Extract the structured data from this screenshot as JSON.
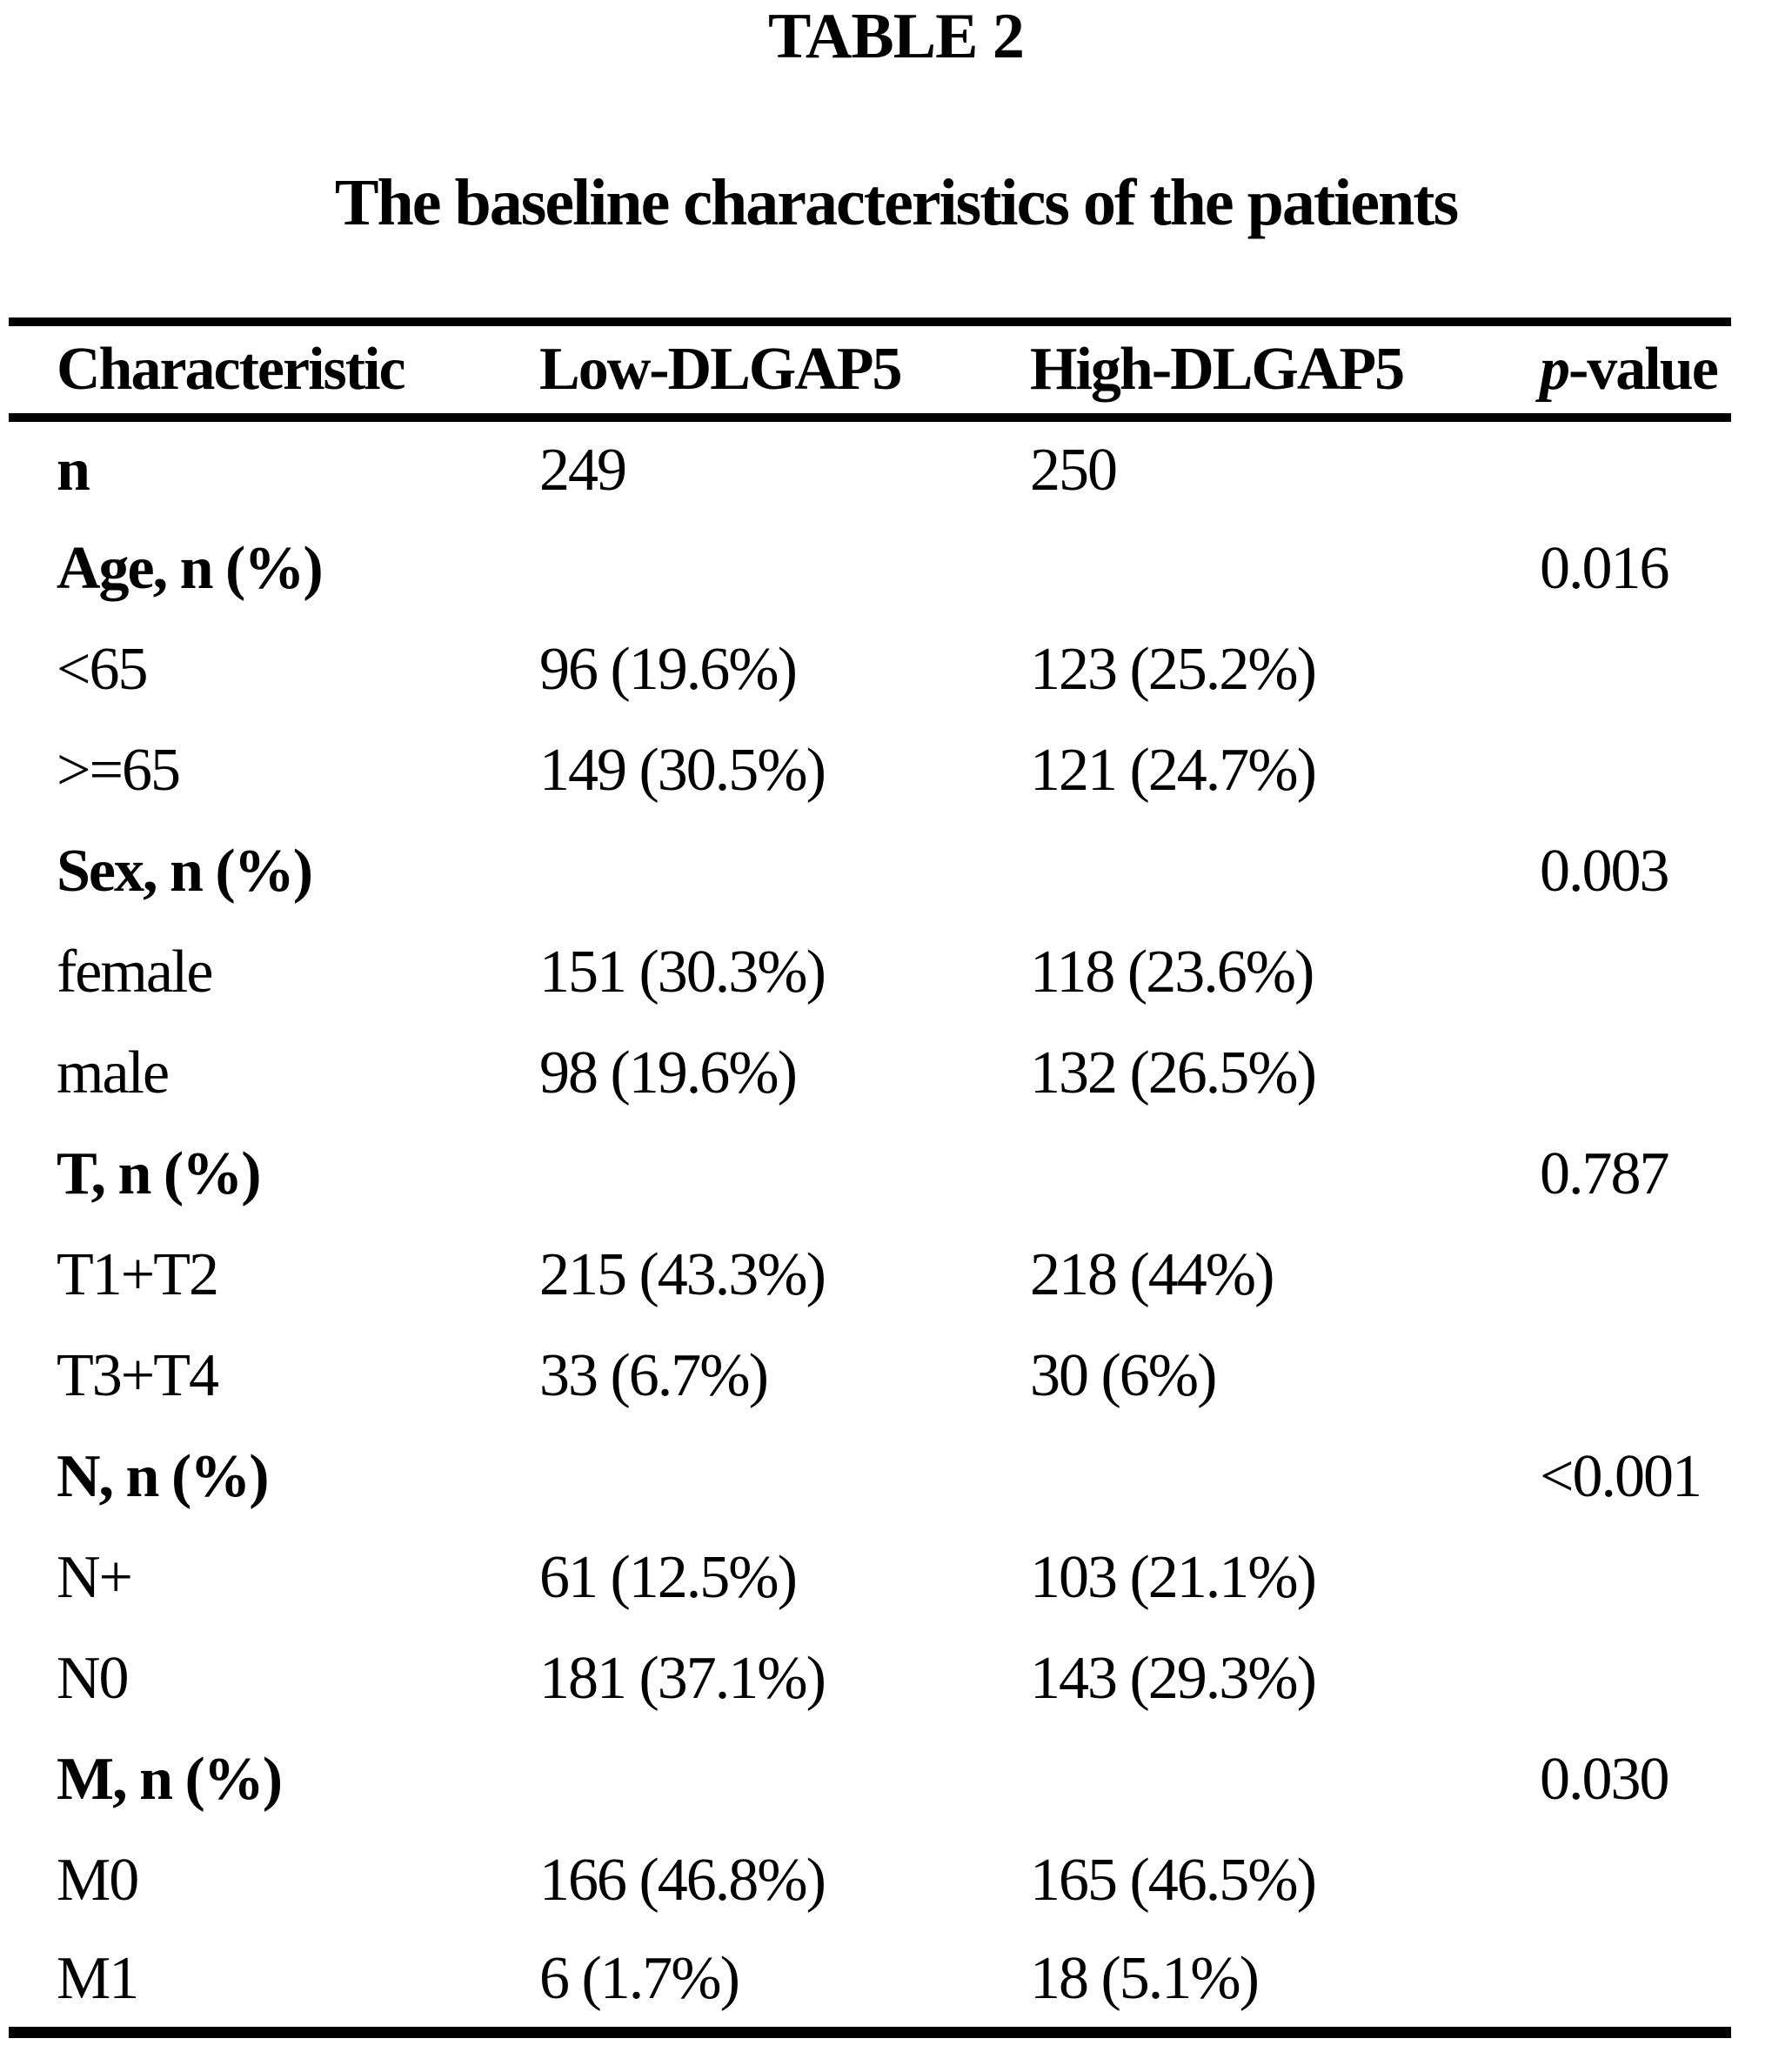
{
  "page": {
    "title": "TABLE 2",
    "subtitle": "The baseline characteristics of the patients"
  },
  "colors": {
    "background": "#ffffff",
    "text": "#000000",
    "rule": "#000000"
  },
  "table": {
    "columns": [
      "Characteristic",
      "Low-DLGAP5",
      "High-DLGAP5",
      "p-value"
    ],
    "p_header": {
      "italic": "p",
      "rest": "-value"
    },
    "rows": [
      {
        "label": "n",
        "bold": true,
        "low": "249",
        "high": "250",
        "p": ""
      },
      {
        "label": "Age, n (%)",
        "bold": true,
        "low": "",
        "high": "",
        "p": "0.016"
      },
      {
        "label": "<65",
        "bold": false,
        "low": "96 (19.6%)",
        "high": "123 (25.2%)",
        "p": ""
      },
      {
        "label": ">=65",
        "bold": false,
        "low": "149 (30.5%)",
        "high": "121 (24.7%)",
        "p": ""
      },
      {
        "label": "Sex, n (%)",
        "bold": true,
        "low": "",
        "high": "",
        "p": "0.003"
      },
      {
        "label": "female",
        "bold": false,
        "low": "151 (30.3%)",
        "high": "118 (23.6%)",
        "p": ""
      },
      {
        "label": "male",
        "bold": false,
        "low": "98 (19.6%)",
        "high": "132 (26.5%)",
        "p": ""
      },
      {
        "label": "T, n (%)",
        "bold": true,
        "low": "",
        "high": "",
        "p": "0.787"
      },
      {
        "label": "T1+T2",
        "bold": false,
        "low": "215 (43.3%)",
        "high": "218 (44%)",
        "p": ""
      },
      {
        "label": "T3+T4",
        "bold": false,
        "low": "33 (6.7%)",
        "high": "30 (6%)",
        "p": ""
      },
      {
        "label": "N, n (%)",
        "bold": true,
        "low": "",
        "high": "",
        "p": "<0.001"
      },
      {
        "label": "N+",
        "bold": false,
        "low": "61 (12.5%)",
        "high": "103 (21.1%)",
        "p": ""
      },
      {
        "label": "N0",
        "bold": false,
        "low": "181 (37.1%)",
        "high": "143 (29.3%)",
        "p": ""
      },
      {
        "label": "M, n (%)",
        "bold": true,
        "low": "",
        "high": "",
        "p": "0.030"
      },
      {
        "label": "M0",
        "bold": false,
        "low": "166 (46.8%)",
        "high": "165 (46.5%)",
        "p": ""
      },
      {
        "label": "M1",
        "bold": false,
        "low": "6 (1.7%)",
        "high": "18 (5.1%)",
        "p": ""
      }
    ]
  }
}
